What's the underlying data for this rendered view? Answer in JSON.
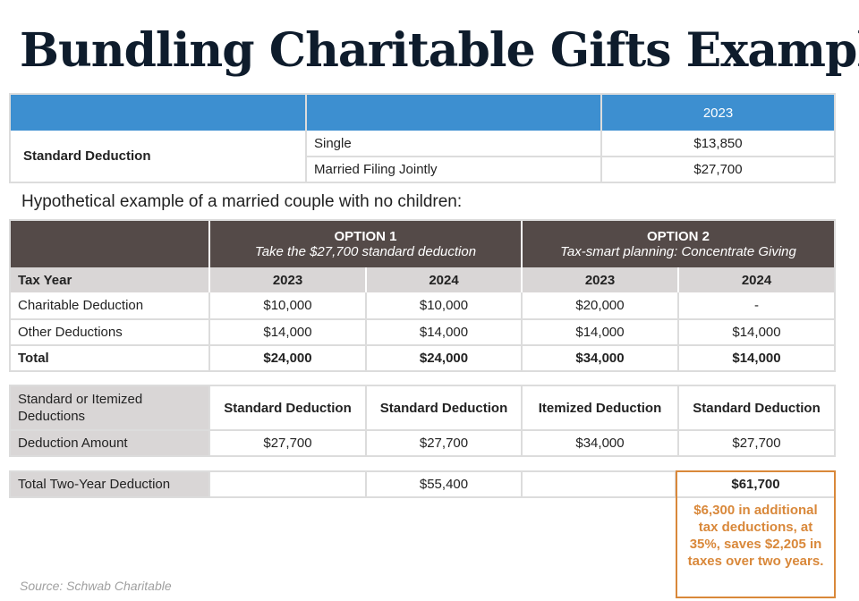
{
  "title": "Bundling Charitable Gifts Example",
  "std_table": {
    "year": "2023",
    "row_label": "Standard Deduction",
    "rows": [
      {
        "status": "Single",
        "amount": "$13,850"
      },
      {
        "status": "Married Filing Jointly",
        "amount": "$27,700"
      }
    ]
  },
  "subtitle": "Hypothetical example of a married couple with no children:",
  "options": [
    {
      "name": "OPTION 1",
      "desc": "Take the $27,700 standard deduction"
    },
    {
      "name": "OPTION 2",
      "desc": "Tax-smart planning: Concentrate Giving"
    }
  ],
  "main_table": {
    "year_label": "Tax Year",
    "years": [
      "2023",
      "2024",
      "2023",
      "2024"
    ],
    "rows": [
      {
        "label": "Charitable Deduction",
        "values": [
          "$10,000",
          "$10,000",
          "$20,000",
          "-"
        ],
        "bold": false
      },
      {
        "label": "Other Deductions",
        "values": [
          "$14,000",
          "$14,000",
          "$14,000",
          "$14,000"
        ],
        "bold": false
      },
      {
        "label": "Total",
        "values": [
          "$24,000",
          "$24,000",
          "$34,000",
          "$14,000"
        ],
        "bold": true
      }
    ]
  },
  "ded_table": {
    "type_label": "Standard or Itemized Deductions",
    "types": [
      "Standard Deduction",
      "Standard Deduction",
      "Itemized Deduction",
      "Standard Deduction"
    ],
    "amount_label": "Deduction Amount",
    "amounts": [
      "$27,700",
      "$27,700",
      "$34,000",
      "$27,700"
    ]
  },
  "two_year": {
    "label": "Total Two-Year Deduction",
    "option1": "$55,400",
    "option2": "$61,700"
  },
  "callout": "$6,300 in additional tax deductions, at 35%, saves $2,205 in taxes over two years.",
  "source": "Source: Schwab Charitable",
  "colors": {
    "blue": "#3d8fd0",
    "dark_header": "#544a48",
    "grey_header": "#d9d6d6",
    "accent": "#d9883a"
  }
}
